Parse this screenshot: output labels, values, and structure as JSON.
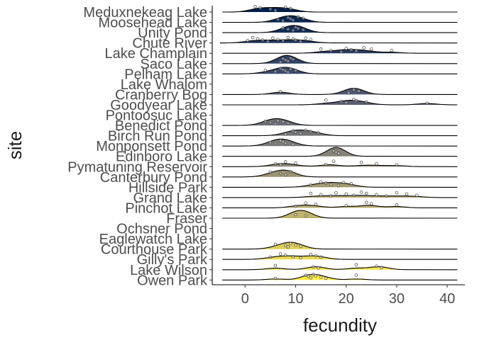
{
  "chart_data": {
    "type": "ridgeline",
    "xlabel": "fecundity",
    "ylabel": "site",
    "xlim": [
      -6.5,
      43.5
    ],
    "x_ticks": [
      0,
      10,
      20,
      30,
      40
    ],
    "grid": false,
    "legend": "none",
    "point_jitter": true,
    "color_scale": [
      "#00204d",
      "#414d6b",
      "#7c7b78",
      "#bcaf6f",
      "#ffea46"
    ],
    "sites": [
      {
        "name": "Meduxnekeag Lake",
        "points": [
          2,
          3,
          5,
          6,
          8,
          9
        ]
      },
      {
        "name": "Moosehead Lake",
        "points": [
          6.5,
          7.5,
          8.5,
          9,
          9.5,
          10.5,
          11.5
        ]
      },
      {
        "name": "Unity Pond",
        "points": [
          7.5,
          8.5,
          9.5,
          10,
          10.5,
          11.5
        ]
      },
      {
        "name": "Chute River",
        "points": [
          0.5,
          1.5,
          2.5,
          3.5,
          4.5,
          5.5,
          6.5,
          7.5,
          8.5,
          9.5,
          10,
          11,
          12,
          13
        ]
      },
      {
        "name": "Lake Champlain",
        "points": [
          15,
          17,
          19,
          20,
          21,
          22,
          23.5,
          25,
          29
        ]
      },
      {
        "name": "Saco Lake",
        "points": [
          7,
          7.5,
          8,
          8.5,
          9,
          9.5
        ]
      },
      {
        "name": "Pelham Lake",
        "points": [
          4,
          6,
          7,
          7.5,
          8,
          8.5,
          9,
          10
        ]
      },
      {
        "name": "Lake Whalom",
        "points": []
      },
      {
        "name": "Cranberry Bog",
        "points": [
          7,
          20.5,
          21.5,
          22.5
        ]
      },
      {
        "name": "Goodyear Lake",
        "points": [
          16,
          19,
          20,
          21.5,
          22,
          24,
          36
        ]
      },
      {
        "name": "Pontoosuc Lake",
        "points": []
      },
      {
        "name": "Benedict Pond",
        "points": [
          4,
          5,
          6,
          6.5,
          7.5,
          8.5
        ]
      },
      {
        "name": "Birch Run Pond",
        "points": [
          8,
          9.5,
          10,
          11,
          12,
          13,
          14.5
        ]
      },
      {
        "name": "Monponsett Pond",
        "points": [
          5,
          6,
          7,
          7.5,
          8,
          9.5
        ]
      },
      {
        "name": "Edinboro Lake",
        "points": [
          17.5,
          18,
          18.5
        ]
      },
      {
        "name": "Pymatuning Reservoir",
        "points": [
          6,
          7,
          8,
          10,
          16,
          17.5,
          23,
          26,
          30
        ]
      },
      {
        "name": "Canterbury Pond",
        "points": [
          5,
          7,
          8,
          9
        ]
      },
      {
        "name": "Hillside Park",
        "points": [
          13,
          15,
          16,
          17,
          18.5,
          19.5,
          21
        ]
      },
      {
        "name": "Grand Lake",
        "points": [
          13,
          15,
          17,
          18,
          20,
          21.5,
          23,
          24,
          26,
          28,
          30,
          32,
          34
        ]
      },
      {
        "name": "Pinchot Lake",
        "points": [
          10,
          12,
          14,
          20,
          24,
          25,
          30
        ]
      },
      {
        "name": "Fraser",
        "points": [
          10,
          12
        ]
      },
      {
        "name": "Ochsner Pond",
        "points": []
      },
      {
        "name": "Eaglewatch Lake",
        "points": []
      },
      {
        "name": "Courthouse Park",
        "points": [
          6,
          8,
          8.5,
          9,
          10,
          11
        ]
      },
      {
        "name": "Gilly's Park",
        "points": [
          5,
          7,
          8,
          9.5,
          11,
          13,
          14,
          15
        ]
      },
      {
        "name": "Lake Wilson",
        "points": [
          6,
          13.5,
          14.5,
          22,
          26,
          27
        ]
      },
      {
        "name": "Owen Park",
        "points": [
          6,
          12,
          12.5,
          13,
          13.5,
          14,
          15,
          16,
          22
        ]
      }
    ]
  }
}
